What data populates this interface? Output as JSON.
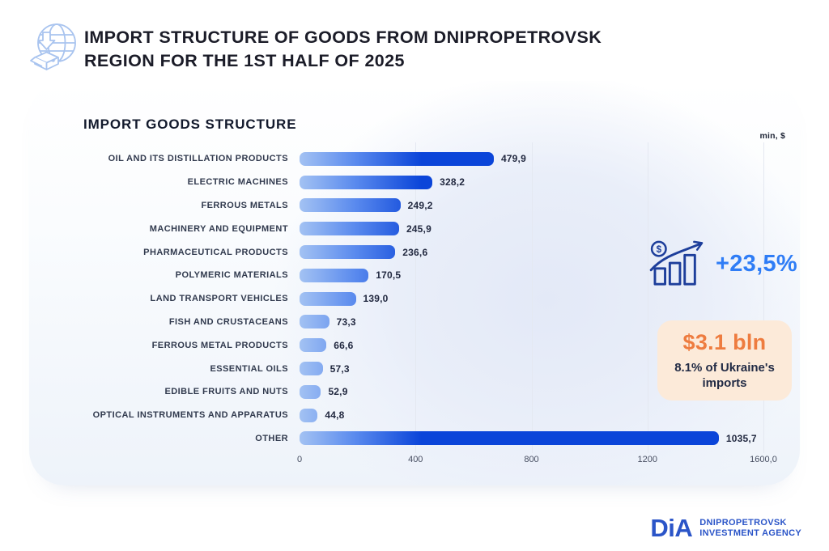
{
  "header": {
    "title_lines": [
      "IMPORT STRUCTURE OF GOODS FROM DNIPROPETROVSK",
      "REGION FOR THE 1ST HALF OF 2025"
    ]
  },
  "chart": {
    "title": "IMPORT GOODS STRUCTURE",
    "unit": "min, $"
  },
  "chart_data": {
    "type": "bar",
    "orientation": "horizontal",
    "title": "IMPORT GOODS STRUCTURE",
    "unit_label": "min, $",
    "categories": [
      "OIL AND ITS DISTILLATION PRODUCTS",
      "ELECTRIC MACHINES",
      "FERROUS METALS",
      "MACHINERY AND EQUIPMENT",
      "PHARMACEUTICAL PRODUCTS",
      "POLYMERIC MATERIALS",
      "LAND TRANSPORT VEHICLES",
      "FISH AND CRUSTACEANS",
      "FERROUS METAL PRODUCTS",
      "ESSENTIAL OILS",
      "EDIBLE FRUITS AND NUTS",
      "OPTICAL INSTRUMENTS AND APPARATUS",
      "OTHER"
    ],
    "values": [
      479.9,
      328.2,
      249.2,
      245.9,
      236.6,
      170.5,
      139.0,
      73.3,
      66.6,
      57.3,
      52.9,
      44.8,
      1035.7
    ],
    "value_labels": [
      "479,9",
      "328,2",
      "249,2",
      "245,9",
      "236,6",
      "170,5",
      "139,0",
      "73,3",
      "66,6",
      "57,3",
      "52,9",
      "44,8",
      "1035,7"
    ],
    "x_ticks": [
      "0",
      "400",
      "800",
      "1200",
      "1600,0"
    ],
    "xlim": [
      0,
      1600
    ],
    "grid": "vertical-faint",
    "legend": "none"
  },
  "stats": {
    "growth": "+23,5%",
    "total": "$3.1 bln",
    "caption": "8.1% of Ukraine's imports"
  },
  "footer": {
    "logo": "DiA",
    "org_line1": "DNIPROPETROVSK",
    "org_line2": "INVESTMENT AGENCY"
  },
  "colors": {
    "bar_dark": "#0b45d9",
    "bar_light": "#a3c2f3",
    "growth_text": "#2f7df6",
    "icon_navy": "#1d3e9b",
    "card_bg": "#fcead9",
    "card_value": "#ee7c3f",
    "logo_blue": "#2b55c8",
    "globe_icon": "#a9c4ef"
  }
}
